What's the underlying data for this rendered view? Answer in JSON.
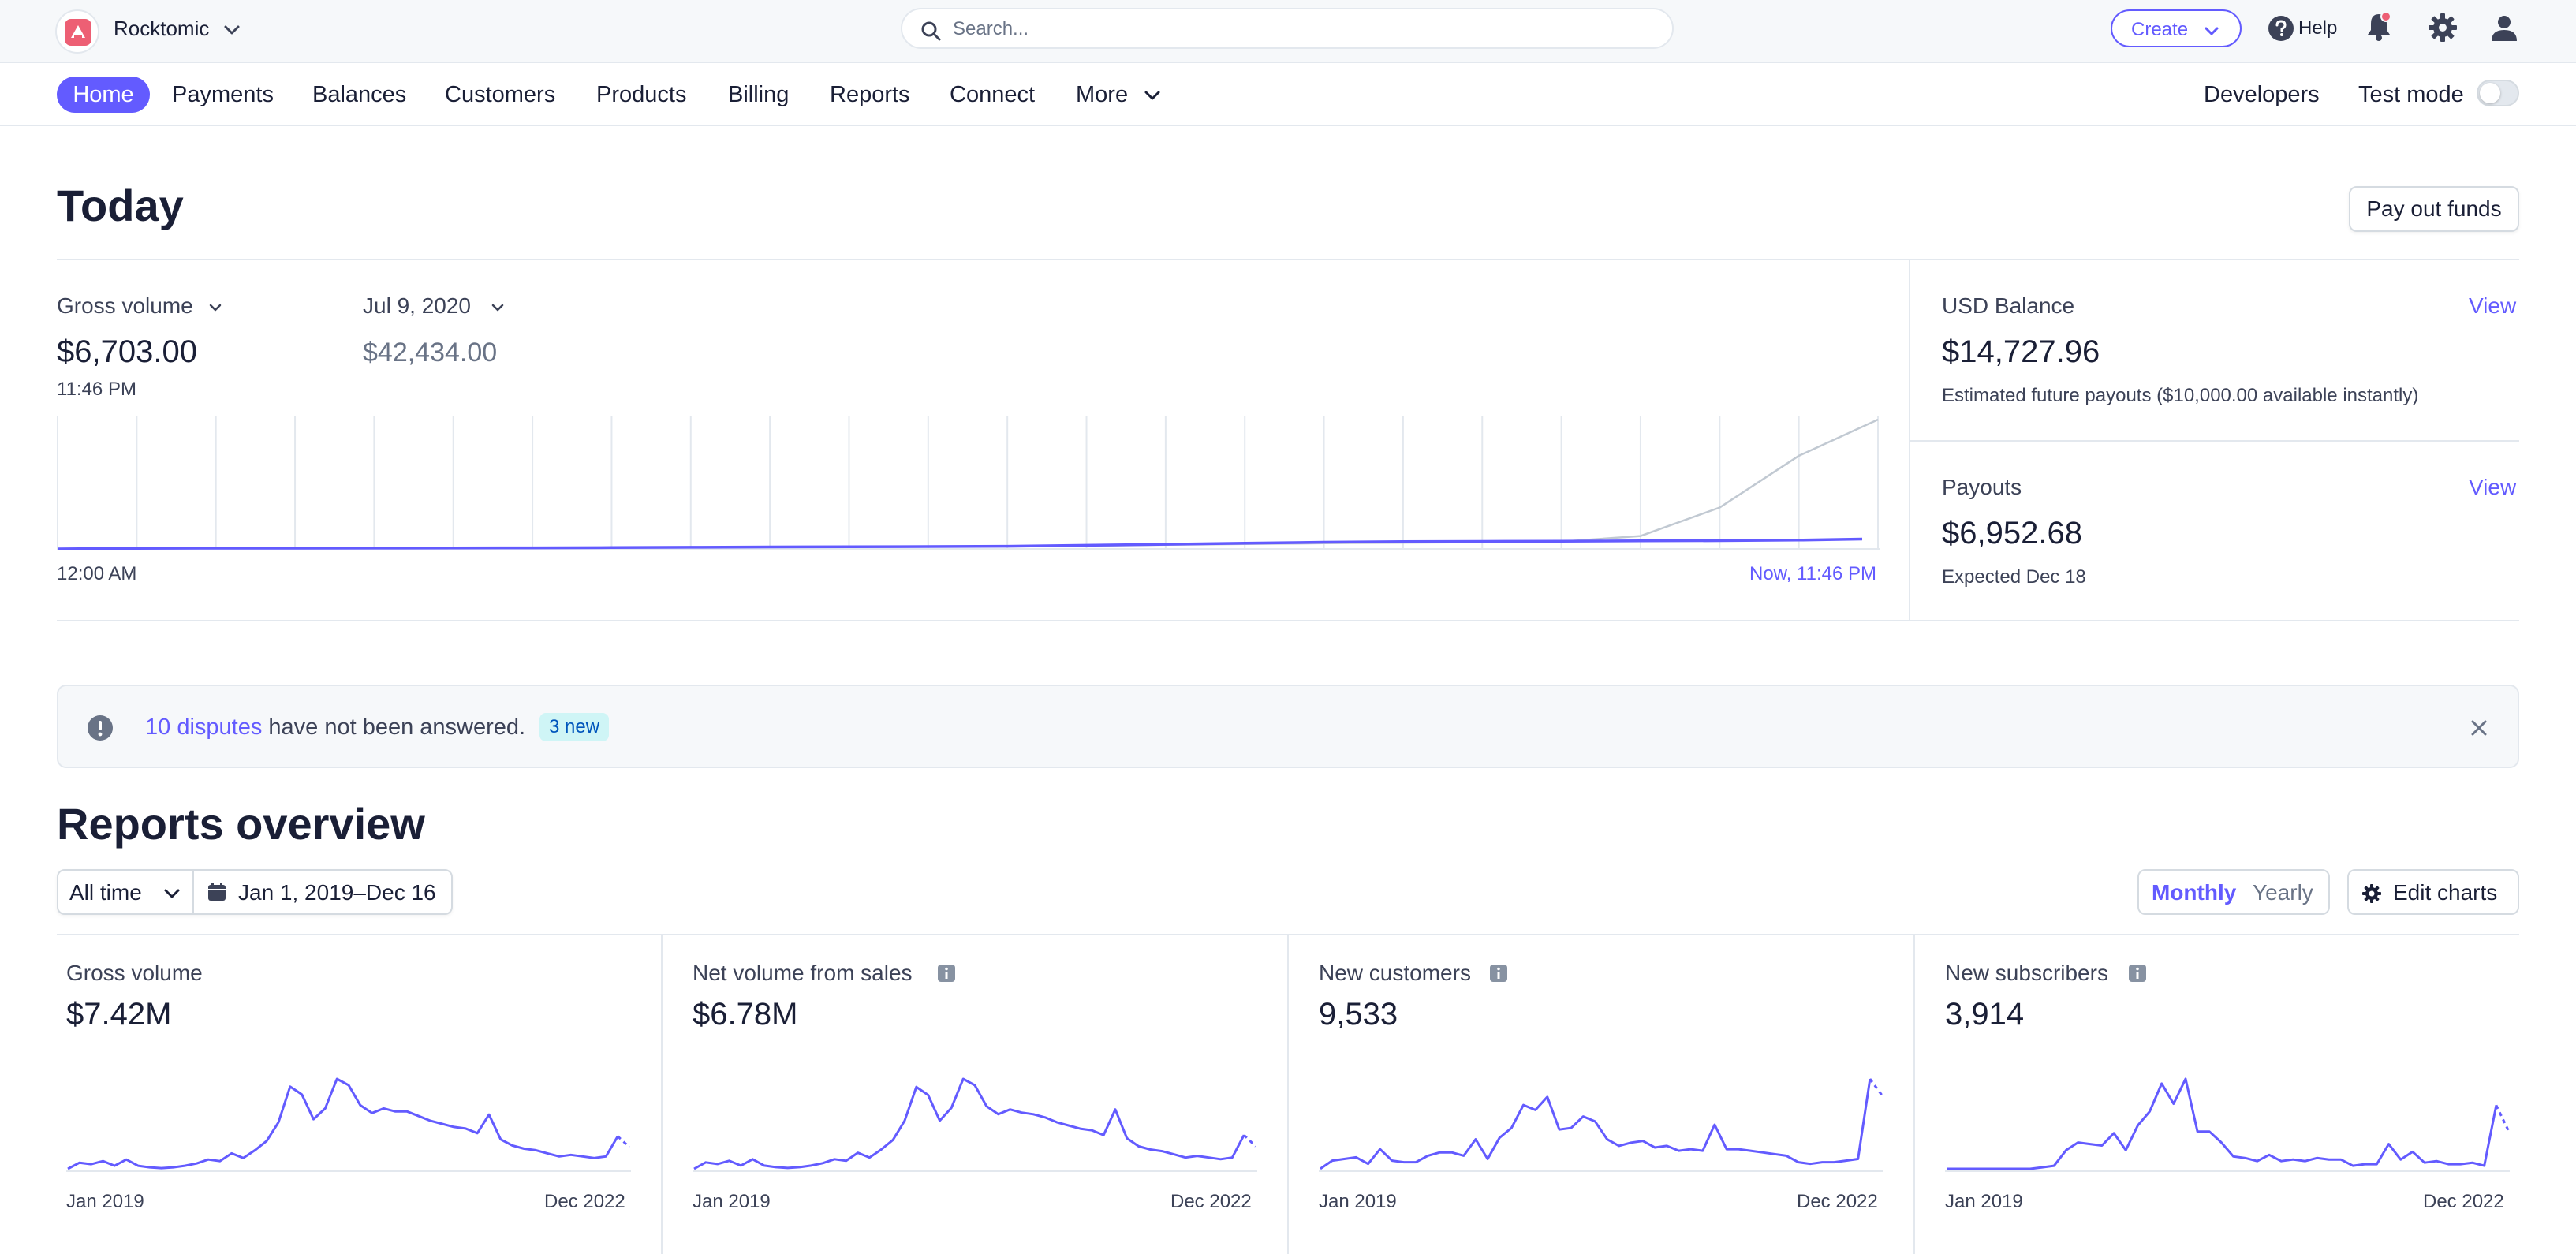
{
  "topbar": {
    "account_name": "Rocktomic",
    "search_placeholder": "Search...",
    "create_label": "Create",
    "help_label": "Help"
  },
  "nav": {
    "items": [
      "Home",
      "Payments",
      "Balances",
      "Customers",
      "Products",
      "Billing",
      "Reports",
      "Connect",
      "More"
    ],
    "active": "Home",
    "developers_label": "Developers",
    "test_mode_label": "Test mode",
    "test_mode_on": false
  },
  "today": {
    "title": "Today",
    "payout_button": "Pay out funds",
    "gross_volume_label": "Gross volume",
    "gross_volume_value": "$6,703.00",
    "gross_volume_time": "11:46 PM",
    "compare_label": "Jul 9, 2020",
    "compare_value": "$42,434.00",
    "chart_start_label": "12:00 AM",
    "chart_end_label": "Now, 11:46 PM",
    "balance": {
      "label": "USD Balance",
      "view": "View",
      "value": "$14,727.96",
      "note": "Estimated future payouts ($10,000.00 available instantly)"
    },
    "payouts": {
      "label": "Payouts",
      "view": "View",
      "value": "$6,952.68",
      "note": "Expected Dec 18"
    }
  },
  "banner": {
    "link_text": "10 disputes",
    "text": "have not been answered.",
    "badge": "3 new"
  },
  "reports": {
    "title": "Reports overview",
    "range_label": "All time",
    "date_range": "Jan 1, 2019–Dec 16",
    "monthly": "Monthly",
    "yearly": "Yearly",
    "edit_charts": "Edit charts",
    "cards": [
      {
        "label": "Gross volume",
        "value": "$7.42M",
        "info": false,
        "start": "Jan 2019",
        "end": "Dec 2022"
      },
      {
        "label": "Net volume from sales",
        "value": "$6.78M",
        "info": true,
        "start": "Jan 2019",
        "end": "Dec 2022"
      },
      {
        "label": "New customers",
        "value": "9,533",
        "info": true,
        "start": "Jan 2019",
        "end": "Dec 2022"
      },
      {
        "label": "New subscribers",
        "value": "3,914",
        "info": true,
        "start": "Jan 2019",
        "end": "Dec 2022"
      }
    ]
  },
  "colors": {
    "accent": "#635bff",
    "text": "#1a1f36",
    "muted": "#697386",
    "border": "#e3e8ee",
    "compare_line": "#c1c9d2"
  },
  "chart_data": [
    {
      "type": "line",
      "title": "Gross volume",
      "xlabel": "",
      "ylabel": "",
      "x": [
        "12:00 AM",
        "",
        "",
        "",
        "",
        "",
        "",
        "",
        "",
        "",
        "",
        "",
        "",
        "",
        "",
        "",
        "",
        "",
        "",
        "",
        "",
        "",
        "",
        "Now, 11:46 PM"
      ],
      "series": [
        {
          "name": "",
          "color": "#635bff",
          "values": [
            0,
            120,
            150,
            160,
            170,
            190,
            220,
            260,
            320,
            380,
            420,
            460,
            520,
            700,
            900,
            1100,
            1300,
            1400,
            1450,
            1500,
            1550,
            1600,
            1700,
            1900
          ]
        },
        {
          "name": "",
          "color": "#c1c9d2",
          "values": [
            0,
            110,
            140,
            150,
            160,
            180,
            200,
            240,
            280,
            340,
            380,
            420,
            480,
            600,
            800,
            950,
            1100,
            1200,
            1300,
            1400,
            2500,
            8000,
            18000,
            25000
          ]
        }
      ]
    },
    {
      "type": "line",
      "title": "Gross volume",
      "x_start": "Jan 2019",
      "x_end": "Dec 2022",
      "series": [
        {
          "name": "",
          "values": [
            2,
            10,
            8,
            12,
            6,
            14,
            6,
            4,
            3,
            4,
            6,
            9,
            14,
            12,
            22,
            16,
            26,
            38,
            62,
            108,
            98,
            66,
            80,
            118,
            110,
            84,
            74,
            80,
            76,
            76,
            70,
            64,
            60,
            56,
            54,
            48,
            72,
            40,
            32,
            28,
            26,
            22,
            18,
            20,
            18,
            16,
            18,
            44,
            30
          ]
        }
      ]
    },
    {
      "type": "line",
      "title": "Net volume from sales",
      "x_start": "Jan 2019",
      "x_end": "Dec 2022",
      "series": [
        {
          "name": "",
          "values": [
            2,
            10,
            8,
            12,
            6,
            14,
            6,
            4,
            3,
            4,
            6,
            9,
            14,
            12,
            22,
            16,
            26,
            38,
            62,
            104,
            94,
            62,
            78,
            114,
            106,
            80,
            70,
            76,
            72,
            70,
            66,
            60,
            56,
            52,
            50,
            44,
            76,
            40,
            30,
            26,
            24,
            20,
            16,
            18,
            16,
            14,
            16,
            44,
            30
          ]
        }
      ]
    },
    {
      "type": "line",
      "title": "New customers",
      "x_start": "Jan 2019",
      "x_end": "Dec 2022",
      "series": [
        {
          "name": "",
          "values": [
            2,
            12,
            14,
            16,
            8,
            26,
            12,
            10,
            10,
            18,
            22,
            22,
            18,
            38,
            14,
            40,
            52,
            80,
            74,
            90,
            50,
            52,
            66,
            60,
            38,
            30,
            34,
            36,
            28,
            30,
            24,
            26,
            24,
            56,
            26,
            26,
            24,
            22,
            20,
            18,
            10,
            8,
            10,
            10,
            12,
            14,
            112,
            92
          ]
        }
      ]
    },
    {
      "type": "line",
      "title": "New subscribers",
      "x_start": "Jan 2019",
      "x_end": "Dec 2022",
      "series": [
        {
          "name": "",
          "values": [
            2,
            2,
            2,
            2,
            2,
            2,
            2,
            2,
            4,
            6,
            26,
            36,
            34,
            32,
            48,
            26,
            58,
            76,
            112,
            86,
            118,
            50,
            50,
            36,
            18,
            16,
            12,
            20,
            12,
            14,
            12,
            16,
            14,
            14,
            6,
            8,
            8,
            34,
            14,
            24,
            10,
            12,
            8,
            8,
            10,
            6,
            84,
            52
          ]
        }
      ]
    }
  ]
}
